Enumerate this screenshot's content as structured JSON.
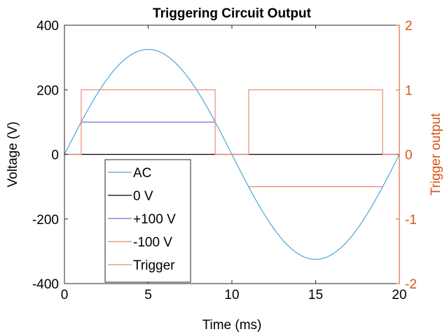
{
  "chart_data": {
    "type": "line",
    "title": "Triggering Circuit Output",
    "xlabel": "Time (ms)",
    "ylabel": "Voltage (V)",
    "ylabel_right": "Trigger output",
    "xlim": [
      0,
      20
    ],
    "ylim": [
      -400,
      400
    ],
    "ylim_right": [
      -2,
      2
    ],
    "xticks": [
      0,
      5,
      10,
      15,
      20
    ],
    "yticks": [
      -400,
      -200,
      0,
      200,
      400
    ],
    "yticks_right": [
      -2,
      -1,
      0,
      1,
      2
    ],
    "grid": false,
    "legend_position": "lower-left",
    "series": [
      {
        "name": "AC",
        "axis": "left",
        "color": "#4fa6d8",
        "function": "sine",
        "amplitude": 325,
        "period": 20,
        "x_range": [
          0,
          20
        ]
      },
      {
        "name": "0 V",
        "axis": "left",
        "color": "#000000",
        "x": [
          0,
          20
        ],
        "y": [
          0,
          0
        ]
      },
      {
        "name": "+100 V",
        "axis": "left",
        "color": "#6b78d6",
        "x": [
          1,
          9
        ],
        "y": [
          100,
          100
        ]
      },
      {
        "name": "-100 V",
        "axis": "left",
        "color": "#e8836a",
        "x": [
          11,
          19
        ],
        "y": [
          -100,
          -100
        ]
      },
      {
        "name": "Trigger",
        "axis": "right",
        "color": "#f08a78",
        "x": [
          0,
          1,
          1,
          9,
          9,
          11,
          11,
          19,
          19,
          20
        ],
        "y": [
          0,
          0,
          1,
          1,
          0,
          0,
          1,
          1,
          0,
          0
        ]
      }
    ]
  }
}
